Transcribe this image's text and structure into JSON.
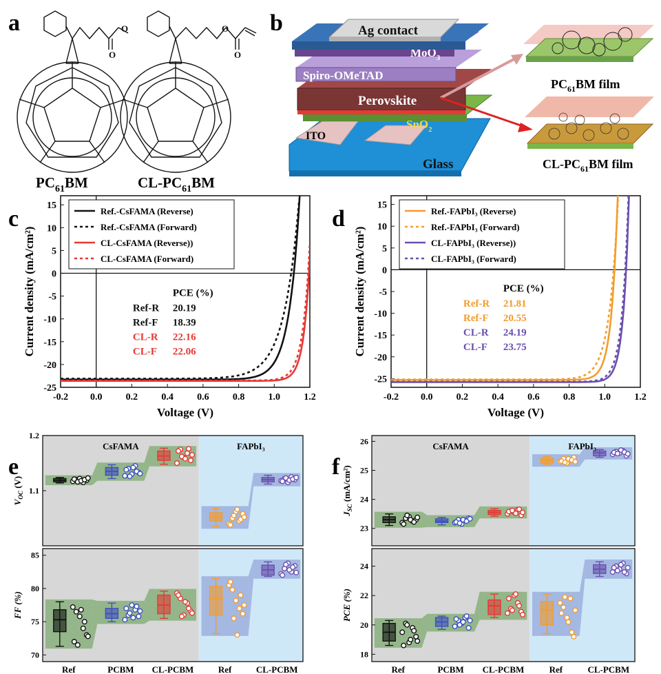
{
  "panel_letters": {
    "a": "a",
    "b": "b",
    "c": "c",
    "d": "d",
    "e": "e",
    "f": "f"
  },
  "panel_a": {
    "molecule_1": {
      "label": "PC",
      "sub": "61",
      "tail": "BM"
    },
    "molecule_2": {
      "label": "CL-PC",
      "sub": "61",
      "tail": "BM"
    }
  },
  "panel_b": {
    "layers": [
      {
        "name": "Ag contact",
        "color": "#d9d9d9"
      },
      {
        "name": "MoO",
        "sub": "3",
        "color": "#7a4fa3"
      },
      {
        "name": "Spiro-OMeTAD",
        "color": "#9b7fc2"
      },
      {
        "name": "Perovskite",
        "color": "#7a3535"
      },
      {
        "name": "SnO",
        "sub": "2",
        "color": "#7ab648"
      },
      {
        "name": "ITO",
        "color": "#e7c2c2"
      },
      {
        "name": "Glass",
        "color": "#1f8fd6"
      }
    ],
    "film_1": {
      "label": "PC",
      "sub": "61",
      "tail": "BM film"
    },
    "film_2": {
      "label": "CL-PC",
      "sub": "61",
      "tail": "BM film"
    }
  },
  "colors": {
    "black": "#111111",
    "red": "#e53935",
    "orange": "#f39c2e",
    "purple": "#6a4fae",
    "blue": "#3d4fc2",
    "gray_bg": "#d7d7d7",
    "blue_bg": "#cfe8f8",
    "green_band": "#5c9a4a"
  },
  "chart_data": [
    {
      "id": "c",
      "type": "line",
      "xlabel": "Voltage (V)",
      "ylabel": "Current density (mA/cm²)",
      "xlim": [
        -0.2,
        1.2
      ],
      "ylim": [
        -25,
        17
      ],
      "xticks": [
        -0.2,
        0.0,
        0.2,
        0.4,
        0.6,
        0.8,
        1.0,
        1.2
      ],
      "yticks": [
        15,
        10,
        5,
        0,
        -5,
        -10,
        -15,
        -20,
        -25
      ],
      "series": [
        {
          "name": "Ref.-CsFAMA (Reverse)",
          "color": "#111111",
          "dash": false,
          "jsc": -23.3,
          "voc": 1.11,
          "n": 0.06,
          "x_end": 1.155
        },
        {
          "name": "Ref.-CsFAMA (Forward)",
          "color": "#111111",
          "dash": true,
          "jsc": -23.1,
          "voc": 1.095,
          "n": 0.085,
          "x_end": 1.14
        },
        {
          "name": "CL-CsFAMA (Reverse))",
          "color": "#e53935",
          "dash": false,
          "jsc": -23.6,
          "voc": 1.195,
          "n": 0.035,
          "x_end": 1.2
        },
        {
          "name": "CL-CsFAMA (Forward)",
          "color": "#e53935",
          "dash": true,
          "jsc": -23.5,
          "voc": 1.19,
          "n": 0.04,
          "x_end": 1.2
        }
      ],
      "pce_table": {
        "header": "PCE (%)",
        "rows": [
          {
            "label": "Ref-R",
            "value": "20.19",
            "color": "#111111"
          },
          {
            "label": "Ref-F",
            "value": "18.39",
            "color": "#111111"
          },
          {
            "label": "CL-R",
            "value": "22.16",
            "color": "#e53935"
          },
          {
            "label": "CL-F",
            "value": "22.06",
            "color": "#e53935"
          }
        ]
      }
    },
    {
      "id": "d",
      "type": "line",
      "xlabel": "Voltage (V)",
      "ylabel": "Current density (mA/cm²)",
      "xlim": [
        -0.2,
        1.2
      ],
      "ylim": [
        -27,
        17
      ],
      "xticks": [
        -0.2,
        0.0,
        0.2,
        0.4,
        0.6,
        0.8,
        1.0,
        1.2
      ],
      "yticks": [
        15,
        10,
        5,
        0,
        -5,
        -10,
        -15,
        -20,
        -25
      ],
      "series": [
        {
          "name": "Ref.-FAPbI₃ (Reverse)",
          "color": "#f39c2e",
          "dash": false,
          "jsc": -25.3,
          "voc": 1.055,
          "n": 0.035,
          "x_end": 1.11
        },
        {
          "name": "Ref.-FAPbI₃ (Forward)",
          "color": "#f39c2e",
          "dash": true,
          "jsc": -25.2,
          "voc": 1.05,
          "n": 0.05,
          "x_end": 1.105
        },
        {
          "name": "CL-FAPbI₃ (Reverse))",
          "color": "#6a4fae",
          "dash": false,
          "jsc": -25.8,
          "voc": 1.12,
          "n": 0.032,
          "x_end": 1.155
        },
        {
          "name": "CL-FAPbI₃ (Forward)",
          "color": "#6a4fae",
          "dash": true,
          "jsc": -25.7,
          "voc": 1.115,
          "n": 0.036,
          "x_end": 1.15
        }
      ],
      "pce_table": {
        "header": "PCE (%)",
        "rows": [
          {
            "label": "Ref-R",
            "value": "21.81",
            "color": "#f39c2e"
          },
          {
            "label": "Ref-F",
            "value": "20.55",
            "color": "#f39c2e"
          },
          {
            "label": "CL-R",
            "value": "24.19",
            "color": "#6a4fae"
          },
          {
            "label": "CL-F",
            "value": "23.75",
            "color": "#6a4fae"
          }
        ]
      }
    },
    {
      "id": "e",
      "type": "box",
      "categories": [
        "Ref",
        "PCBM",
        "CL-PCBM",
        "Ref",
        "CL-PCBM"
      ],
      "group_labels": [
        "CsFAMA",
        "FAPbI₃"
      ],
      "subplots": [
        {
          "ylabel": "V_OC (V)",
          "ylim": [
            1.0,
            1.2
          ],
          "yticks": [
            1.1,
            1.2
          ],
          "boxes": [
            {
              "q1": 1.116,
              "med": 1.119,
              "q3": 1.122,
              "lo": 1.114,
              "hi": 1.124,
              "color": "#111111",
              "points": [
                1.117,
                1.12,
                1.122,
                1.115,
                1.119,
                1.121,
                1.116,
                1.118,
                1.12,
                1.123
              ]
            },
            {
              "q1": 1.128,
              "med": 1.135,
              "q3": 1.142,
              "lo": 1.122,
              "hi": 1.147,
              "color": "#3d4fc2",
              "points": [
                1.127,
                1.14,
                1.13,
                1.145,
                1.133,
                1.138,
                1.126,
                1.142,
                1.135,
                1.131
              ]
            },
            {
              "q1": 1.155,
              "med": 1.163,
              "q3": 1.172,
              "lo": 1.148,
              "hi": 1.177,
              "color": "#e53935",
              "points": [
                1.15,
                1.175,
                1.16,
                1.168,
                1.155,
                1.172,
                1.162,
                1.158,
                1.176,
                1.165
              ]
            },
            {
              "q1": 1.045,
              "med": 1.053,
              "q3": 1.06,
              "lo": 1.035,
              "hi": 1.068,
              "color": "#f39c2e",
              "points": [
                1.04,
                1.05,
                1.062,
                1.045,
                1.058,
                1.038,
                1.055,
                1.066,
                1.048,
                1.052
              ]
            },
            {
              "q1": 1.116,
              "med": 1.12,
              "q3": 1.124,
              "lo": 1.112,
              "hi": 1.128,
              "color": "#6a4fae",
              "points": [
                1.118,
                1.122,
                1.115,
                1.125,
                1.12,
                1.117,
                1.123,
                1.119,
                1.121,
                1.124
              ]
            }
          ]
        },
        {
          "ylabel": "FF (%)",
          "ylim": [
            69,
            86
          ],
          "yticks": [
            70,
            75,
            80,
            85
          ],
          "boxes": [
            {
              "q1": 73.5,
              "med": 75.3,
              "q3": 76.8,
              "lo": 71.3,
              "hi": 78.0,
              "color": "#111111",
              "points": [
                77.2,
                76.5,
                75.8,
                74.0,
                73.0,
                72.0,
                71.5,
                76.8,
                75.0,
                72.8
              ]
            },
            {
              "q1": 75.5,
              "med": 76.2,
              "q3": 77.0,
              "lo": 75.0,
              "hi": 77.8,
              "color": "#3d4fc2",
              "points": [
                75.3,
                76.0,
                77.5,
                76.8,
                75.8,
                77.0,
                76.3,
                75.6,
                77.3,
                76.6
              ]
            },
            {
              "q1": 76.2,
              "med": 77.5,
              "q3": 79.0,
              "lo": 75.5,
              "hi": 79.6,
              "color": "#e53935",
              "points": [
                79.3,
                78.5,
                76.0,
                77.8,
                76.6,
                79.0,
                75.8,
                78.0,
                77.0,
                76.3
              ]
            },
            {
              "q1": 76.0,
              "med": 78.5,
              "q3": 80.3,
              "lo": 73.2,
              "hi": 81.5,
              "color": "#f39c2e",
              "points": [
                80.5,
                79.8,
                78.2,
                77.0,
                76.2,
                81.0,
                75.5,
                73.0,
                79.0,
                77.5
              ]
            },
            {
              "q1": 82.0,
              "med": 82.8,
              "q3": 83.5,
              "lo": 81.8,
              "hi": 84.0,
              "color": "#6a4fae",
              "points": [
                82.2,
                83.0,
                83.8,
                82.5,
                83.4,
                82.0,
                83.6,
                82.8,
                83.2,
                82.4
              ]
            }
          ]
        }
      ]
    },
    {
      "id": "f",
      "type": "box",
      "categories": [
        "Ref",
        "PCBM",
        "CL-PCBM",
        "Ref",
        "CL-PCBM"
      ],
      "group_labels": [
        "CsFAMA",
        "FAPbI₃"
      ],
      "subplots": [
        {
          "ylabel": "J_SC (mA/cm²)",
          "ylim": [
            22.4,
            26.2
          ],
          "yticks": [
            23,
            24,
            25,
            26
          ],
          "boxes": [
            {
              "q1": 23.2,
              "med": 23.3,
              "q3": 23.4,
              "lo": 23.1,
              "hi": 23.5,
              "color": "#111111",
              "points": [
                23.2,
                23.35,
                23.4,
                23.25,
                23.3,
                23.15,
                23.45,
                23.3,
                23.22,
                23.38
              ]
            },
            {
              "q1": 23.2,
              "med": 23.25,
              "q3": 23.33,
              "lo": 23.12,
              "hi": 23.38,
              "color": "#3d4fc2",
              "points": [
                23.2,
                23.3,
                23.15,
                23.28,
                23.35,
                23.22,
                23.18,
                23.3,
                23.25,
                23.33
              ]
            },
            {
              "q1": 23.48,
              "med": 23.55,
              "q3": 23.62,
              "lo": 23.42,
              "hi": 23.68,
              "color": "#e53935",
              "points": [
                23.5,
                23.6,
                23.55,
                23.65,
                23.45,
                23.58,
                23.62,
                23.52,
                23.66,
                23.55
              ]
            },
            {
              "q1": 25.25,
              "med": 25.35,
              "q3": 25.42,
              "lo": 25.2,
              "hi": 25.48,
              "color": "#f39c2e",
              "points": [
                25.3,
                25.4,
                25.25,
                25.35,
                25.45,
                25.32,
                25.28,
                25.4,
                25.36,
                25.3
              ]
            },
            {
              "q1": 25.5,
              "med": 25.6,
              "q3": 25.67,
              "lo": 25.45,
              "hi": 25.72,
              "color": "#6a4fae",
              "points": [
                25.55,
                25.65,
                25.6,
                25.68,
                25.5,
                25.62,
                25.58,
                25.7,
                25.63,
                25.57
              ]
            }
          ]
        },
        {
          "ylabel": "PCE (%)",
          "ylim": [
            17.5,
            25.2
          ],
          "yticks": [
            18,
            20,
            22,
            24
          ],
          "boxes": [
            {
              "q1": 18.9,
              "med": 19.5,
              "q3": 20.1,
              "lo": 18.6,
              "hi": 20.3,
              "color": "#111111",
              "points": [
                19.5,
                20.1,
                18.8,
                19.8,
                19.2,
                18.6,
                20.0,
                19.0,
                19.6,
                18.9
              ]
            },
            {
              "q1": 19.9,
              "med": 20.2,
              "q3": 20.5,
              "lo": 19.7,
              "hi": 20.6,
              "color": "#3d4fc2",
              "points": [
                19.9,
                20.3,
                20.1,
                20.5,
                19.8,
                20.4,
                20.0,
                20.2,
                20.6,
                20.3
              ]
            },
            {
              "q1": 20.7,
              "med": 21.3,
              "q3": 21.7,
              "lo": 20.5,
              "hi": 22.1,
              "color": "#e53935",
              "points": [
                20.8,
                21.1,
                22.0,
                21.5,
                20.9,
                21.8,
                21.0,
                22.1,
                21.3,
                20.7
              ]
            },
            {
              "q1": 20.0,
              "med": 21.0,
              "q3": 21.6,
              "lo": 19.4,
              "hi": 22.1,
              "color": "#f39c2e",
              "points": [
                21.5,
                21.2,
                20.5,
                21.8,
                19.2,
                20.8,
                21.9,
                20.2,
                19.5,
                21.0
              ]
            },
            {
              "q1": 23.5,
              "med": 23.8,
              "q3": 24.1,
              "lo": 23.3,
              "hi": 24.3,
              "color": "#6a4fae",
              "points": [
                23.6,
                24.0,
                23.8,
                24.2,
                23.5,
                23.9,
                23.7,
                24.1,
                23.6,
                23.9
              ]
            }
          ]
        }
      ]
    }
  ]
}
